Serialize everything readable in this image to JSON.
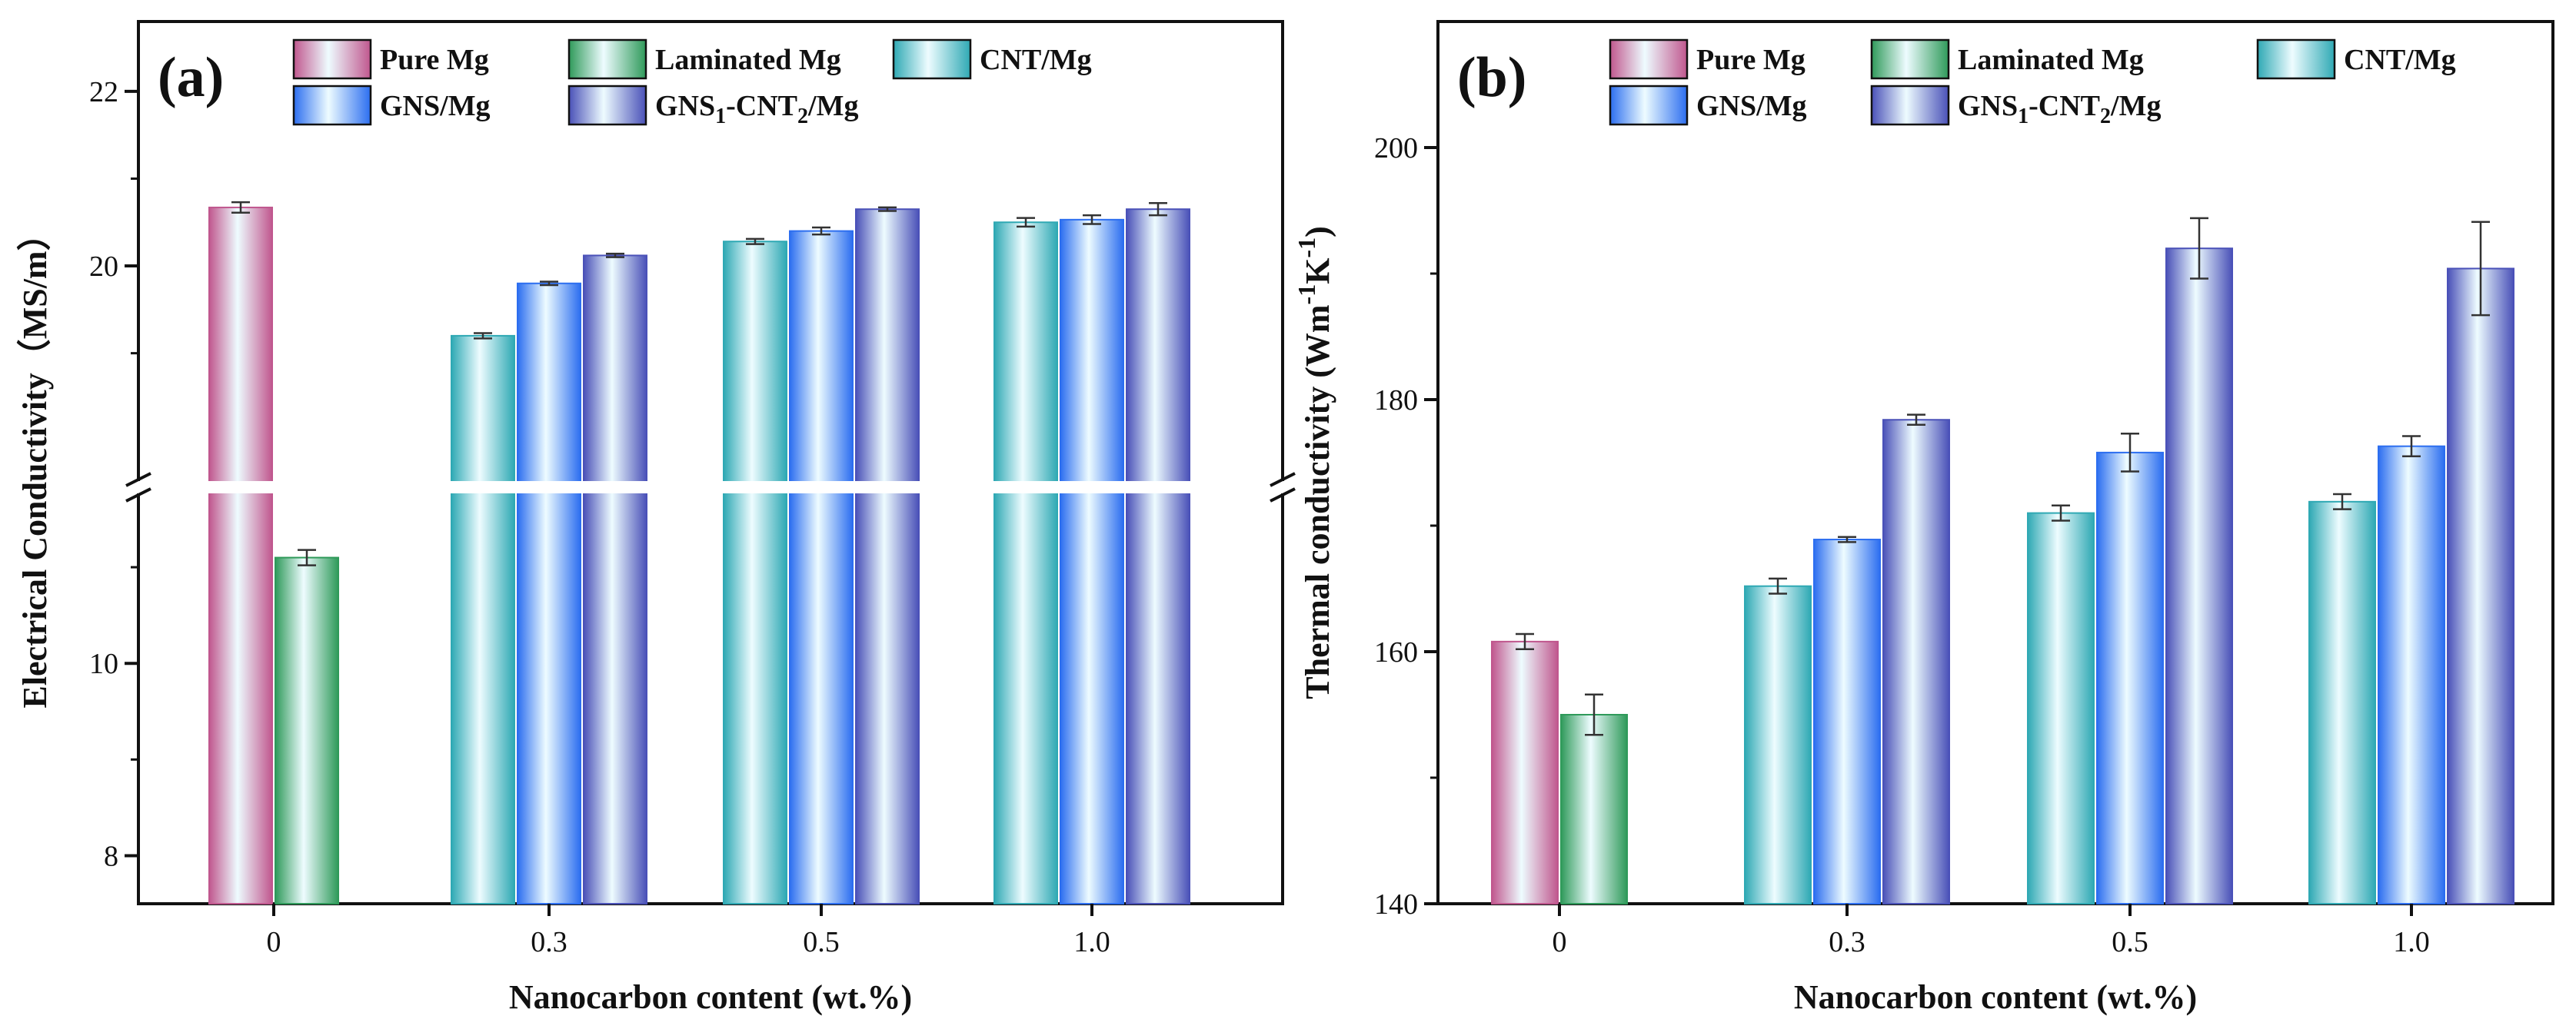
{
  "colors": {
    "Pure Mg": "#c0578e",
    "Laminated Mg": "#2f9a5a",
    "CNT/Mg": "#2fa9b4",
    "GNS/Mg": "#2c6ef0",
    "GNS1-CNT2/Mg": "#4a51b8",
    "axis": "#111111"
  },
  "legend_layout_note": "",
  "chart_data": [
    {
      "panel_label": "(a)",
      "type": "bar",
      "xlabel": "Nanocarbon content (wt.%)",
      "ylabel": "Electrical Conductivity（MS/m）",
      "broken_y_axis": true,
      "ylim_lower": [
        7.5,
        11.8
      ],
      "ylim_upper": [
        17.5,
        22.8
      ],
      "yticks": [
        "8",
        "10",
        "20",
        "22"
      ],
      "categories": [
        "0",
        "0.3",
        "0.5",
        "1.0"
      ],
      "legend": {
        "position": "top",
        "entries": [
          {
            "name": "Pure Mg",
            "text": "Pure Mg"
          },
          {
            "name": "Laminated Mg",
            "text": "Laminated Mg"
          },
          {
            "name": "CNT/Mg",
            "text": "CNT/Mg"
          },
          {
            "name": "GNS/Mg",
            "text": "GNS/Mg"
          },
          {
            "name": "GNS1-CNT2/Mg",
            "text": "GNS",
            "sub1": "1",
            "mid": "-CNT",
            "sub2": "2",
            "tail": "/Mg"
          }
        ]
      },
      "series": [
        {
          "name": "Pure Mg",
          "values": [
            20.67,
            null,
            null,
            null
          ],
          "errors": [
            0.06,
            null,
            null,
            null
          ]
        },
        {
          "name": "Laminated Mg",
          "values": [
            11.1,
            null,
            null,
            null
          ],
          "errors": [
            0.08,
            null,
            null,
            null
          ]
        },
        {
          "name": "CNT/Mg",
          "values": [
            null,
            19.2,
            20.28,
            20.5
          ],
          "errors": [
            null,
            0.03,
            0.03,
            0.05
          ]
        },
        {
          "name": "GNS/Mg",
          "values": [
            null,
            19.8,
            20.4,
            20.53
          ],
          "errors": [
            null,
            0.02,
            0.04,
            0.05
          ]
        },
        {
          "name": "GNS1-CNT2/Mg",
          "values": [
            null,
            20.12,
            20.65,
            20.65
          ],
          "errors": [
            null,
            0.02,
            0.02,
            0.07
          ]
        }
      ]
    },
    {
      "panel_label": "(b)",
      "type": "bar",
      "xlabel": "Nanocarbon content (wt.%)",
      "ylabel_main": "Thermal conductivity (Wm",
      "ylabel_sup1": "-1",
      "ylabel_mid": "K",
      "ylabel_sup2": "-1",
      "ylabel_tail": ")",
      "ylim": [
        140,
        210
      ],
      "yticks": [
        "140",
        "160",
        "180",
        "200"
      ],
      "categories": [
        "0",
        "0.3",
        "0.5",
        "1.0"
      ],
      "legend": {
        "position": "top",
        "entries": [
          {
            "name": "Pure Mg",
            "text": "Pure Mg"
          },
          {
            "name": "Laminated Mg",
            "text": "Laminated Mg"
          },
          {
            "name": "CNT/Mg",
            "text": "CNT/Mg"
          },
          {
            "name": "GNS/Mg",
            "text": "GNS/Mg"
          },
          {
            "name": "GNS1-CNT2/Mg",
            "text": "GNS",
            "sub1": "1",
            "mid": "-CNT",
            "sub2": "2",
            "tail": "/Mg"
          }
        ]
      },
      "series": [
        {
          "name": "Pure Mg",
          "values": [
            160.8,
            null,
            null,
            null
          ],
          "errors": [
            0.6,
            null,
            null,
            null
          ]
        },
        {
          "name": "Laminated Mg",
          "values": [
            155.0,
            null,
            null,
            null
          ],
          "errors": [
            1.6,
            null,
            null,
            null
          ]
        },
        {
          "name": "CNT/Mg",
          "values": [
            null,
            165.2,
            171.0,
            171.9
          ],
          "errors": [
            null,
            0.6,
            0.6,
            0.6
          ]
        },
        {
          "name": "GNS/Mg",
          "values": [
            null,
            168.9,
            175.8,
            176.3
          ],
          "errors": [
            null,
            0.2,
            1.5,
            0.8
          ]
        },
        {
          "name": "GNS1-CNT2/Mg",
          "values": [
            null,
            178.4,
            192.0,
            190.4
          ],
          "errors": [
            null,
            0.4,
            2.4,
            3.7
          ]
        }
      ]
    }
  ]
}
